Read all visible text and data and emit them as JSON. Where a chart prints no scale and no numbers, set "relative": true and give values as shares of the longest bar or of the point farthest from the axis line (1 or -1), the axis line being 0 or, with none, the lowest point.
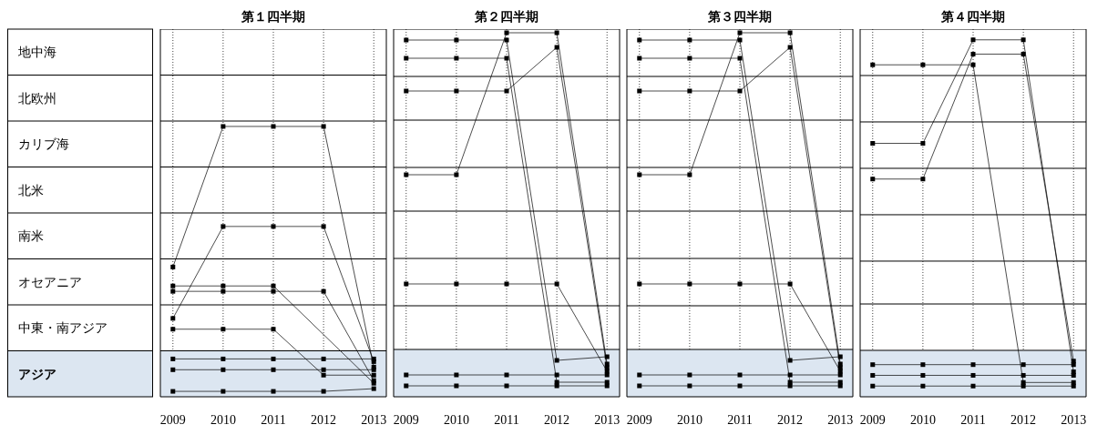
{
  "chart_data": [
    {
      "type": "line",
      "title": "第１四半期",
      "x": [
        2009,
        2010,
        2011,
        2012,
        2013
      ],
      "xlim": [
        2008.75,
        2013.25
      ],
      "xticks": [
        2009,
        2010,
        2011,
        2012,
        2013
      ],
      "relative": true,
      "grid": "x",
      "marker": "square",
      "bands": [
        {
          "axis": "y",
          "from": 0,
          "to": 0.17,
          "color": "#dce6f1"
        }
      ],
      "ref_lines": [
        {
          "axis": "y",
          "value": 0.17,
          "color": "#000000"
        },
        {
          "axis": "y",
          "value": 0.34,
          "color": "#000000"
        },
        {
          "axis": "y",
          "value": 0.51,
          "color": "#000000"
        },
        {
          "axis": "y",
          "value": 0.68,
          "color": "#000000"
        },
        {
          "axis": "y",
          "value": 0.85,
          "color": "#000000"
        },
        {
          "axis": "y",
          "value": 1.02,
          "color": "#000000"
        },
        {
          "axis": "y",
          "value": 1.19,
          "color": "#000000"
        },
        {
          "axis": "y",
          "value": 1.36,
          "color": "#000000"
        }
      ],
      "annotations": [
        "地中海",
        "北欧州",
        "カリブ海",
        "北米",
        "南米",
        "オセアニア",
        "中東・南アジア",
        "アジア"
      ],
      "series": [
        {
          "color": "#000000",
          "values": [
            0.48,
            1,
            1,
            1,
            0.11
          ]
        },
        {
          "color": "#000000",
          "values": [
            0.29,
            0.63,
            0.63,
            0.63,
            0.13
          ]
        },
        {
          "color": "#000000",
          "x": [
            2009,
            2010,
            2011,
            2013
          ],
          "values": [
            0.41,
            0.41,
            0.41,
            0.05
          ]
        },
        {
          "color": "#000000",
          "values": [
            0.39,
            0.39,
            0.39,
            0.39,
            0.06
          ]
        },
        {
          "color": "#000000",
          "values": [
            0.25,
            0.25,
            0.25,
            0.08,
            0.08
          ]
        },
        {
          "color": "#000000",
          "values": [
            0.14,
            0.14,
            0.14,
            0.14,
            0.14
          ]
        },
        {
          "color": "#000000",
          "values": [
            0.1,
            0.1,
            0.1,
            0.1,
            0.1
          ]
        },
        {
          "color": "#000000",
          "values": [
            0.02,
            0.02,
            0.02,
            0.02,
            0.03
          ]
        }
      ]
    },
    {
      "type": "line",
      "title": "第２四半期",
      "x": [
        2009,
        2010,
        2011,
        2012,
        2013
      ],
      "xlim": [
        2008.75,
        2013.25
      ],
      "xticks": [
        2009,
        2010,
        2011,
        2012,
        2013
      ],
      "relative": true,
      "grid": "x",
      "marker": "square",
      "bands": [
        {
          "axis": "y",
          "from": 0,
          "to": 0.13,
          "color": "#dce6f1"
        }
      ],
      "ref_lines": [
        {
          "axis": "y",
          "value": 0.13,
          "color": "#000000"
        },
        {
          "axis": "y",
          "value": 0.25,
          "color": "#000000"
        },
        {
          "axis": "y",
          "value": 0.38,
          "color": "#000000"
        },
        {
          "axis": "y",
          "value": 0.51,
          "color": "#000000"
        },
        {
          "axis": "y",
          "value": 0.63,
          "color": "#000000"
        },
        {
          "axis": "y",
          "value": 0.76,
          "color": "#000000"
        },
        {
          "axis": "y",
          "value": 0.88,
          "color": "#000000"
        },
        {
          "axis": "y",
          "value": 1.01,
          "color": "#000000"
        }
      ],
      "series": [
        {
          "color": "#000000",
          "values": [
            0.98,
            0.98,
            0.98,
            0.1,
            0.11
          ]
        },
        {
          "color": "#000000",
          "values": [
            0.93,
            0.93,
            0.93,
            0.04,
            0.04
          ]
        },
        {
          "color": "#000000",
          "values": [
            0.84,
            0.84,
            0.84,
            0.96,
            0.08
          ]
        },
        {
          "color": "#000000",
          "values": [
            0.61,
            0.61,
            1,
            1,
            0.09
          ]
        },
        {
          "color": "#000000",
          "values": [
            0.31,
            0.31,
            0.31,
            0.31,
            0.07
          ]
        },
        {
          "color": "#000000",
          "values": [
            0.06,
            0.06,
            0.06,
            0.06,
            0.06
          ]
        },
        {
          "color": "#000000",
          "values": [
            0.03,
            0.03,
            0.03,
            0.03,
            0.03
          ]
        }
      ]
    },
    {
      "type": "line",
      "title": "第３四半期",
      "x": [
        2009,
        2010,
        2011,
        2012,
        2013
      ],
      "xlim": [
        2008.75,
        2013.25
      ],
      "xticks": [
        2009,
        2010,
        2011,
        2012,
        2013
      ],
      "relative": true,
      "grid": "x",
      "marker": "square",
      "bands": [
        {
          "axis": "y",
          "from": 0,
          "to": 0.13,
          "color": "#dce6f1"
        }
      ],
      "ref_lines": [
        {
          "axis": "y",
          "value": 0.13,
          "color": "#000000"
        },
        {
          "axis": "y",
          "value": 0.25,
          "color": "#000000"
        },
        {
          "axis": "y",
          "value": 0.38,
          "color": "#000000"
        },
        {
          "axis": "y",
          "value": 0.51,
          "color": "#000000"
        },
        {
          "axis": "y",
          "value": 0.63,
          "color": "#000000"
        },
        {
          "axis": "y",
          "value": 0.76,
          "color": "#000000"
        },
        {
          "axis": "y",
          "value": 0.88,
          "color": "#000000"
        },
        {
          "axis": "y",
          "value": 1.01,
          "color": "#000000"
        }
      ],
      "series": [
        {
          "color": "#000000",
          "values": [
            0.98,
            0.98,
            0.98,
            0.1,
            0.11
          ]
        },
        {
          "color": "#000000",
          "values": [
            0.93,
            0.93,
            0.93,
            0.04,
            0.04
          ]
        },
        {
          "color": "#000000",
          "values": [
            0.84,
            0.84,
            0.84,
            0.96,
            0.08
          ]
        },
        {
          "color": "#000000",
          "values": [
            0.61,
            0.61,
            1,
            1,
            0.09
          ]
        },
        {
          "color": "#000000",
          "values": [
            0.31,
            0.31,
            0.31,
            0.31,
            0.07
          ]
        },
        {
          "color": "#000000",
          "values": [
            0.06,
            0.06,
            0.06,
            0.06,
            0.06
          ]
        },
        {
          "color": "#000000",
          "values": [
            0.03,
            0.03,
            0.03,
            0.03,
            0.03
          ]
        }
      ]
    },
    {
      "type": "line",
      "title": "第４四半期",
      "x": [
        2009,
        2010,
        2011,
        2012,
        2013
      ],
      "xlim": [
        2008.75,
        2013.25
      ],
      "xticks": [
        2009,
        2010,
        2011,
        2012,
        2013
      ],
      "relative": true,
      "grid": "x",
      "marker": "square",
      "bands": [
        {
          "axis": "y",
          "from": 0,
          "to": 0.13,
          "color": "#dce6f1"
        }
      ],
      "ref_lines": [
        {
          "axis": "y",
          "value": 0.13,
          "color": "#000000"
        },
        {
          "axis": "y",
          "value": 0.26,
          "color": "#000000"
        },
        {
          "axis": "y",
          "value": 0.38,
          "color": "#000000"
        },
        {
          "axis": "y",
          "value": 0.51,
          "color": "#000000"
        },
        {
          "axis": "y",
          "value": 0.64,
          "color": "#000000"
        },
        {
          "axis": "y",
          "value": 0.77,
          "color": "#000000"
        },
        {
          "axis": "y",
          "value": 0.9,
          "color": "#000000"
        },
        {
          "axis": "y",
          "value": 1.03,
          "color": "#000000"
        }
      ],
      "series": [
        {
          "color": "#000000",
          "values": [
            0.93,
            0.93,
            0.93,
            0.04,
            0.04
          ]
        },
        {
          "color": "#000000",
          "values": [
            0.71,
            0.71,
            1,
            1,
            0.07
          ]
        },
        {
          "color": "#000000",
          "values": [
            0.61,
            0.61,
            0.96,
            0.96,
            0.1
          ]
        },
        {
          "color": "#000000",
          "values": [
            0.09,
            0.09,
            0.09,
            0.09,
            0.09
          ]
        },
        {
          "color": "#000000",
          "values": [
            0.06,
            0.06,
            0.06,
            0.06,
            0.06
          ]
        },
        {
          "color": "#000000",
          "values": [
            0.03,
            0.03,
            0.03,
            0.03,
            0.03
          ]
        }
      ]
    }
  ]
}
